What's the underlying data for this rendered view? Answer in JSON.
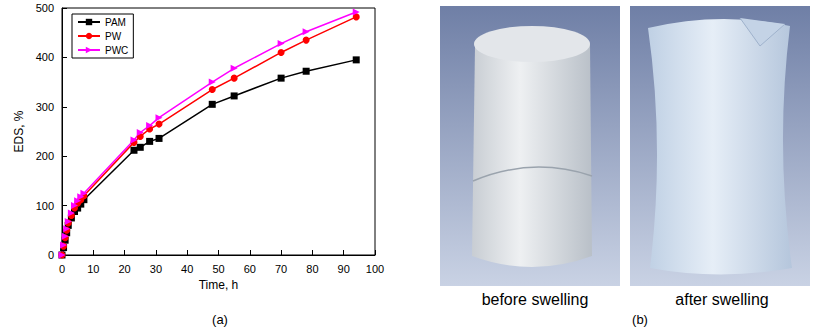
{
  "chart_data": {
    "type": "line",
    "x_label": "Time, h",
    "y_label": "EDS, %",
    "xlim": [
      0,
      100
    ],
    "xticks": [
      0,
      10,
      20,
      30,
      40,
      50,
      60,
      70,
      80,
      90,
      100
    ],
    "ylim": [
      0,
      500
    ],
    "yticks": [
      0,
      100,
      200,
      300,
      400,
      500
    ],
    "legend": "upper left",
    "grid": false,
    "x": [
      0,
      0.5,
      1,
      1.5,
      2,
      3,
      4,
      5,
      6,
      7,
      23,
      25,
      28,
      31,
      48,
      55,
      70,
      78,
      94
    ],
    "series": [
      {
        "name": "PAM",
        "color": "#000000",
        "marker": "square",
        "values": [
          0,
          15,
          30,
          45,
          60,
          75,
          88,
          95,
          103,
          112,
          212,
          218,
          230,
          236,
          305,
          322,
          358,
          372,
          395
        ]
      },
      {
        "name": "PW",
        "color": "#ff0000",
        "marker": "circle",
        "values": [
          0,
          18,
          35,
          50,
          65,
          80,
          95,
          105,
          112,
          120,
          228,
          240,
          255,
          265,
          335,
          358,
          410,
          435,
          482
        ]
      },
      {
        "name": "PWC",
        "color": "#ff00ff",
        "marker": "triangle-right",
        "values": [
          0,
          20,
          38,
          53,
          68,
          85,
          100,
          110,
          118,
          125,
          233,
          248,
          262,
          278,
          350,
          378,
          428,
          452,
          492
        ]
      }
    ]
  },
  "panel_labels": [
    "(a)",
    "(b)"
  ],
  "photo_captions": [
    "before swelling",
    "after swelling"
  ]
}
